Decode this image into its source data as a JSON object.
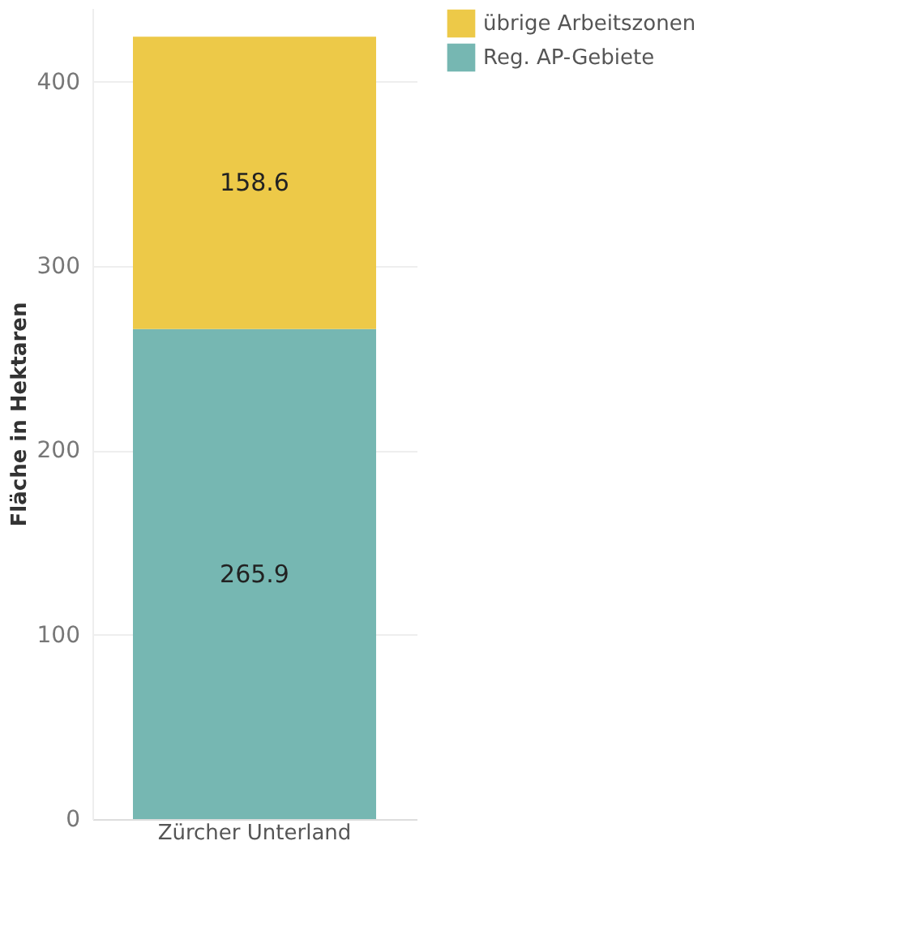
{
  "chart_data": {
    "type": "bar",
    "stacked": true,
    "ylabel": "Fläche in Hektaren",
    "categories": [
      "Zürcher Unterland"
    ],
    "series": [
      {
        "name": "Reg. AP-Gebiete",
        "color": "#76b7b2",
        "values": [
          265.9
        ]
      },
      {
        "name": "übrige Arbeitszonen",
        "color": "#edc948",
        "values": [
          158.6
        ]
      }
    ],
    "ylim": [
      0,
      440
    ],
    "yticks": [
      0,
      100,
      200,
      300,
      400
    ],
    "grid": "y",
    "legend": "top right",
    "data_labels": true
  }
}
